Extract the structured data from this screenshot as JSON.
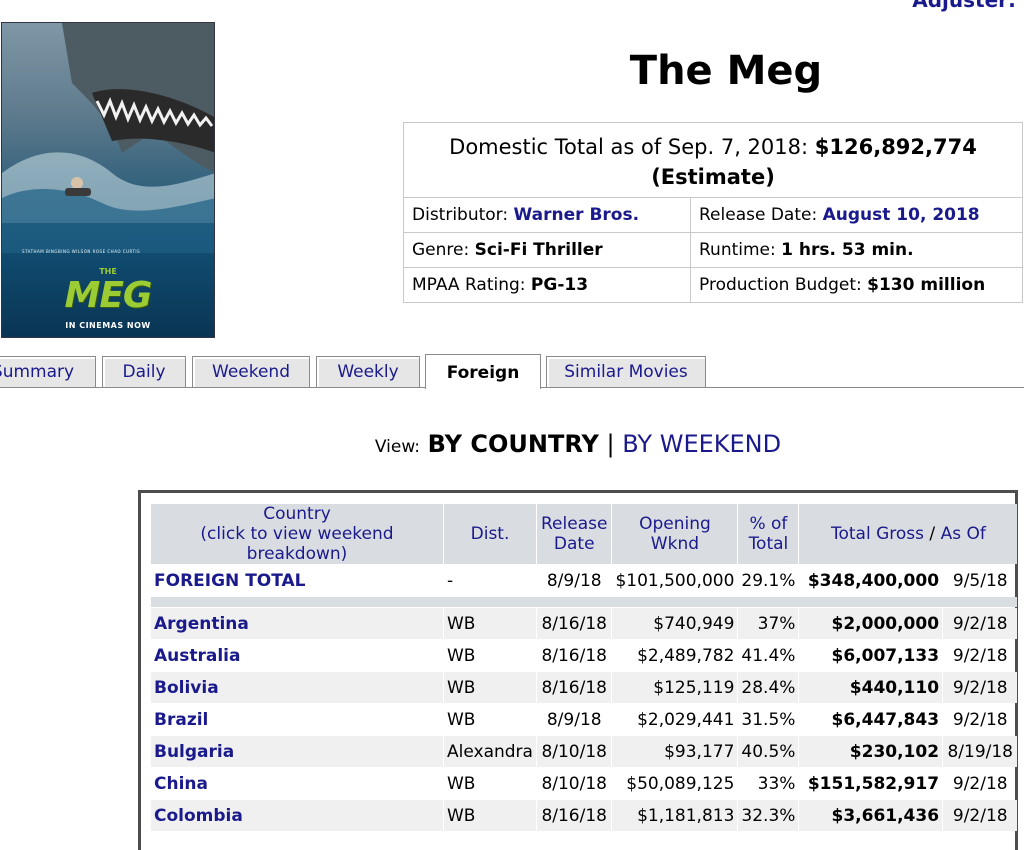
{
  "header": {
    "adjuster_link": "Adjuster:"
  },
  "poster": {
    "cast_line": "STATHAM  BINGBING  WILSON  ROSE  CHAO  CURTIS",
    "title_small": "THE",
    "title": "MEG",
    "tagline": "IN CINEMAS NOW"
  },
  "movie": {
    "title": "The Meg",
    "domestic_label": "Domestic Total as of Sep. 7, 2018:",
    "domestic_total": "$126,892,774",
    "estimate": "(Estimate)",
    "distributor_label": "Distributor:",
    "distributor": "Warner Bros.",
    "release_label": "Release Date:",
    "release_date": "August 10, 2018",
    "genre_label": "Genre:",
    "genre": "Sci-Fi Thriller",
    "runtime_label": "Runtime:",
    "runtime": "1 hrs. 53 min.",
    "mpaa_label": "MPAA Rating:",
    "mpaa": "PG-13",
    "budget_label": "Production Budget:",
    "budget": "$130 million"
  },
  "tabs": [
    {
      "label": "Summary"
    },
    {
      "label": "Daily"
    },
    {
      "label": "Weekend"
    },
    {
      "label": "Weekly"
    },
    {
      "label": "Foreign"
    },
    {
      "label": "Similar Movies"
    }
  ],
  "view": {
    "label": "View:",
    "by_country": "BY COUNTRY",
    "separator": "|",
    "by_weekend": "BY WEEKEND"
  },
  "table": {
    "headers": {
      "country": "Country",
      "country_sub": "(click to view weekend breakdown)",
      "dist": "Dist.",
      "release_1": "Release",
      "release_2": "Date",
      "opening_1": "Opening",
      "opening_2": "Wknd",
      "pct_1": "% of",
      "pct_2": "Total",
      "gross": "Total Gross",
      "gross_sep": "/",
      "asof": "As Of"
    },
    "total_row": {
      "country": "FOREIGN TOTAL",
      "dist": "-",
      "release": "8/9/18",
      "opening": "$101,500,000",
      "pct": "29.1%",
      "gross": "$348,400,000",
      "asof": "9/5/18"
    },
    "rows": [
      {
        "country": "Argentina",
        "dist": "WB",
        "release": "8/16/18",
        "opening": "$740,949",
        "pct": "37%",
        "gross": "$2,000,000",
        "asof": "9/2/18"
      },
      {
        "country": "Australia",
        "dist": "WB",
        "release": "8/16/18",
        "opening": "$2,489,782",
        "pct": "41.4%",
        "gross": "$6,007,133",
        "asof": "9/2/18"
      },
      {
        "country": "Bolivia",
        "dist": "WB",
        "release": "8/16/18",
        "opening": "$125,119",
        "pct": "28.4%",
        "gross": "$440,110",
        "asof": "9/2/18"
      },
      {
        "country": "Brazil",
        "dist": "WB",
        "release": "8/9/18",
        "opening": "$2,029,441",
        "pct": "31.5%",
        "gross": "$6,447,843",
        "asof": "9/2/18"
      },
      {
        "country": "Bulgaria",
        "dist": "Alexandra",
        "release": "8/10/18",
        "opening": "$93,177",
        "pct": "40.5%",
        "gross": "$230,102",
        "asof": "8/19/18"
      },
      {
        "country": "China",
        "dist": "WB",
        "release": "8/10/18",
        "opening": "$50,089,125",
        "pct": "33%",
        "gross": "$151,582,917",
        "asof": "9/2/18"
      },
      {
        "country": "Colombia",
        "dist": "WB",
        "release": "8/16/18",
        "opening": "$1,181,813",
        "pct": "32.3%",
        "gross": "$3,661,436",
        "asof": "9/2/18"
      }
    ]
  }
}
